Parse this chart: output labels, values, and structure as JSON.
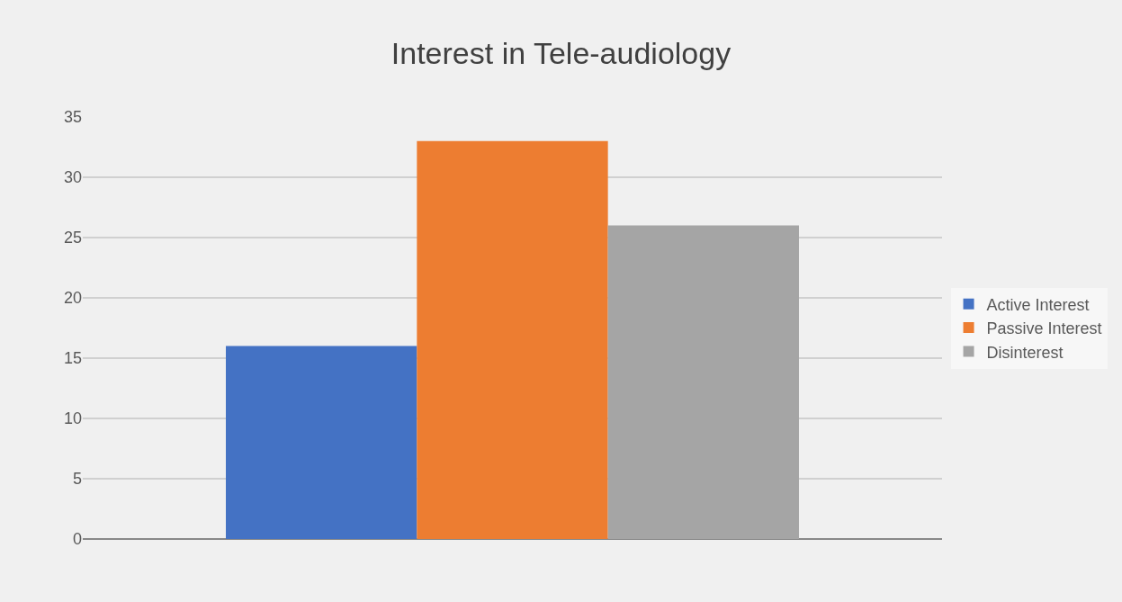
{
  "chart_data": {
    "type": "bar",
    "title": "Interest in Tele-audiology",
    "categories": [
      null
    ],
    "series": [
      {
        "name": "Active Interest",
        "color": "#4472c4",
        "values": [
          16
        ]
      },
      {
        "name": "Passive Interest",
        "color": "#ed7d31",
        "values": [
          33
        ]
      },
      {
        "name": "Disinterest",
        "color": "#a5a5a5",
        "values": [
          26
        ]
      }
    ],
    "ylim": [
      0,
      35
    ],
    "yticks": [
      0,
      5,
      10,
      15,
      20,
      25,
      30,
      35
    ],
    "grid": "y",
    "legend": "right",
    "tick_labels": "y"
  }
}
